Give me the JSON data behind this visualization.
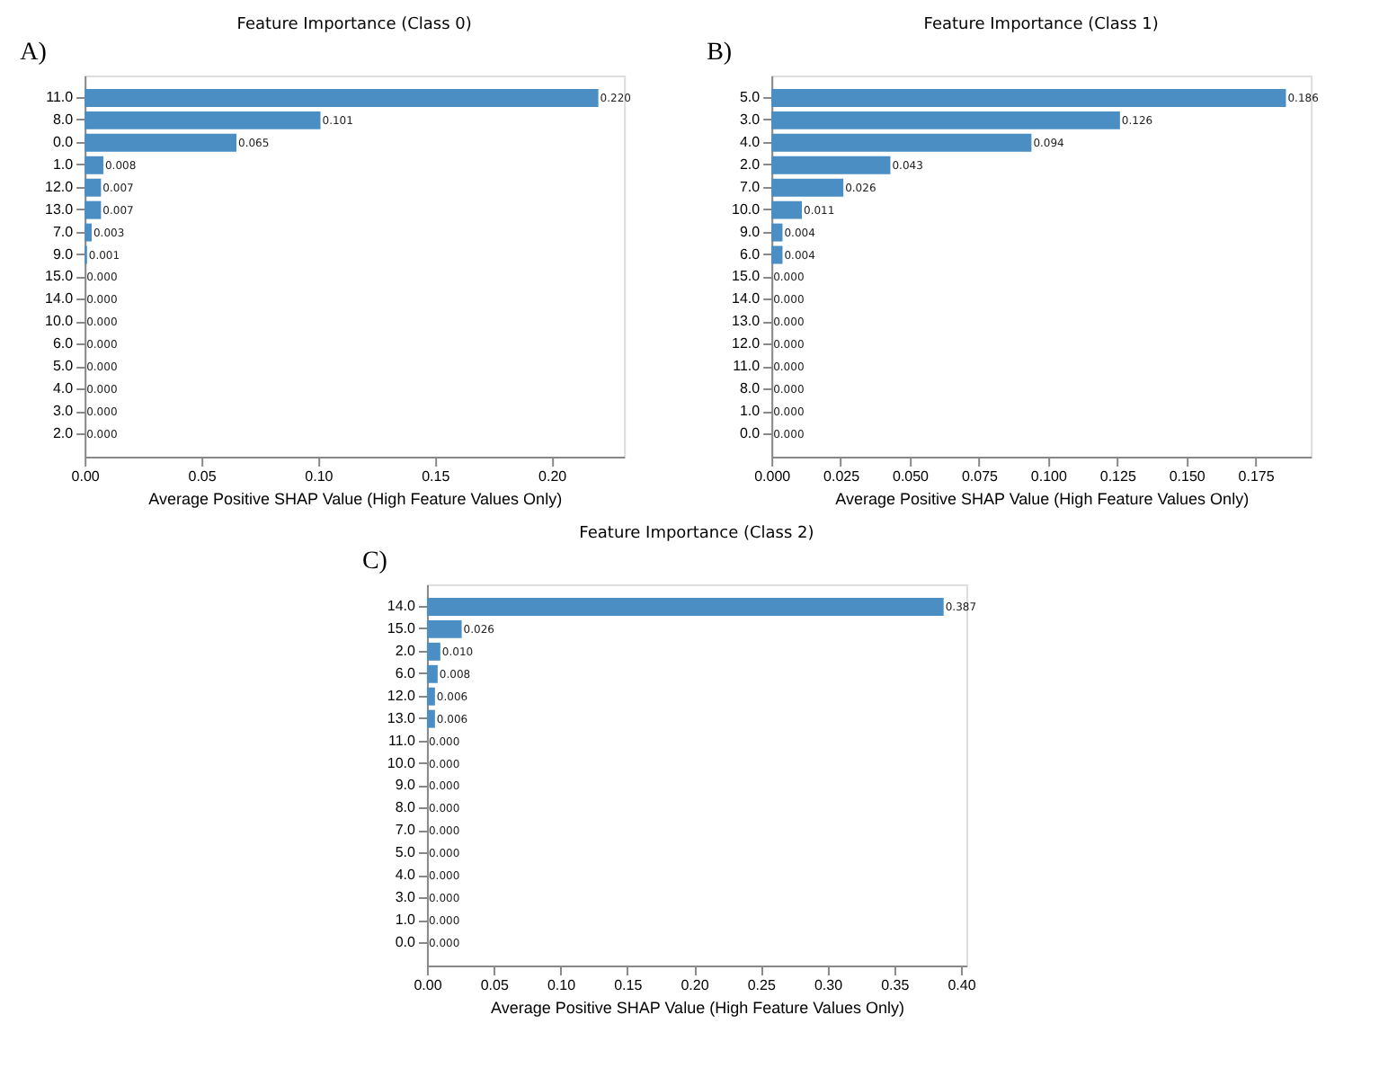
{
  "chart_data": [
    {
      "type": "bar",
      "orientation": "horizontal",
      "title": "Feature Importance (Class 0)",
      "xlabel": "Average Positive SHAP Value (High Feature Values Only)",
      "annotations": [
        "A)"
      ],
      "color": "#4a8ec4",
      "grid": false,
      "categories": [
        "11.0",
        "8.0",
        "0.0",
        "1.0",
        "12.0",
        "13.0",
        "7.0",
        "9.0",
        "15.0",
        "14.0",
        "10.0",
        "6.0",
        "5.0",
        "4.0",
        "3.0",
        "2.0"
      ],
      "values": [
        0.22,
        0.101,
        0.065,
        0.008,
        0.007,
        0.007,
        0.003,
        0.001,
        0.0,
        0.0,
        0.0,
        0.0,
        0.0,
        0.0,
        0.0,
        0.0
      ],
      "value_labels": [
        "0.220",
        "0.101",
        "0.065",
        "0.008",
        "0.007",
        "0.007",
        "0.003",
        "0.001",
        "0.000",
        "0.000",
        "0.000",
        "0.000",
        "0.000",
        "0.000",
        "0.000",
        "0.000"
      ],
      "xlim": [
        0,
        0.231
      ],
      "xticks": [
        {
          "value": 0,
          "label": "0.00"
        },
        0.05,
        {
          "value": 0.1,
          "label": "0.10"
        },
        0.15,
        {
          "value": 0.2,
          "label": "0.20"
        }
      ]
    },
    {
      "type": "bar",
      "orientation": "horizontal",
      "title": "Feature Importance (Class 1)",
      "xlabel": "Average Positive SHAP Value (High Feature Values Only)",
      "annotations": [
        "B)"
      ],
      "color": "#4a8ec4",
      "grid": false,
      "categories": [
        "5.0",
        "3.0",
        "4.0",
        "2.0",
        "7.0",
        "10.0",
        "9.0",
        "6.0",
        "15.0",
        "14.0",
        "13.0",
        "12.0",
        "11.0",
        "8.0",
        "1.0",
        "0.0"
      ],
      "values": [
        0.186,
        0.126,
        0.094,
        0.043,
        0.026,
        0.011,
        0.004,
        0.004,
        0.0,
        0.0,
        0.0,
        0.0,
        0.0,
        0.0,
        0.0,
        0.0
      ],
      "value_labels": [
        "0.186",
        "0.126",
        "0.094",
        "0.043",
        "0.026",
        "0.011",
        "0.004",
        "0.004",
        "0.000",
        "0.000",
        "0.000",
        "0.000",
        "0.000",
        "0.000",
        "0.000",
        "0.000"
      ],
      "xlim": [
        0,
        0.195
      ],
      "xticks": [
        {
          "value": 0,
          "label": "0.000"
        },
        0.025,
        {
          "value": 0.05,
          "label": "0.050"
        },
        0.075,
        {
          "value": 0.1,
          "label": "0.100"
        },
        0.125,
        {
          "value": 0.15,
          "label": "0.150"
        },
        0.175
      ]
    },
    {
      "type": "bar",
      "orientation": "horizontal",
      "title": "Feature Importance (Class 2)",
      "xlabel": "Average Positive SHAP Value (High Feature Values Only)",
      "annotations": [
        "C)"
      ],
      "color": "#4a8ec4",
      "grid": false,
      "categories": [
        "14.0",
        "15.0",
        "2.0",
        "6.0",
        "12.0",
        "13.0",
        "11.0",
        "10.0",
        "9.0",
        "8.0",
        "7.0",
        "5.0",
        "4.0",
        "3.0",
        "1.0",
        "0.0"
      ],
      "values": [
        0.387,
        0.026,
        0.01,
        0.008,
        0.006,
        0.006,
        0.0,
        0.0,
        0.0,
        0.0,
        0.0,
        0.0,
        0.0,
        0.0,
        0.0,
        0.0
      ],
      "value_labels": [
        "0.387",
        "0.026",
        "0.010",
        "0.008",
        "0.006",
        "0.006",
        "0.000",
        "0.000",
        "0.000",
        "0.000",
        "0.000",
        "0.000",
        "0.000",
        "0.000",
        "0.000",
        "0.000"
      ],
      "xlim": [
        0,
        0.404
      ],
      "xticks": [
        {
          "value": 0,
          "label": "0.00"
        },
        0.05,
        {
          "value": 0.1,
          "label": "0.10"
        },
        0.15,
        {
          "value": 0.2,
          "label": "0.20"
        },
        0.25,
        {
          "value": 0.3,
          "label": "0.30"
        },
        0.35,
        {
          "value": 0.4,
          "label": "0.40"
        }
      ]
    }
  ]
}
